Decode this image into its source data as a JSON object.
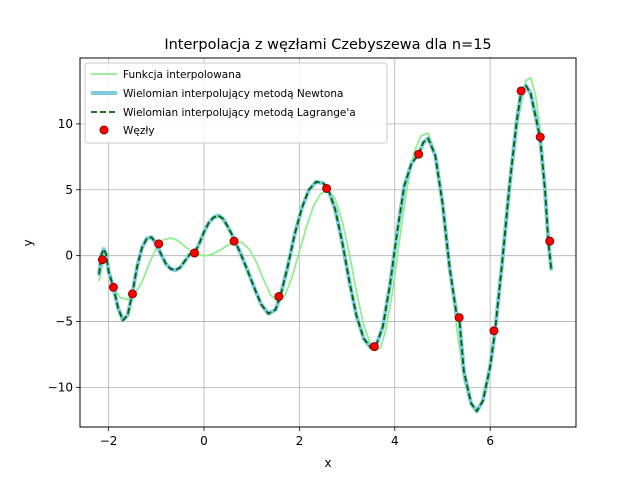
{
  "chart_data": {
    "type": "line",
    "title": "Interpolacja z węzłami Czebyszewa dla n=15",
    "xlabel": "x",
    "ylabel": "y",
    "xlim": [
      -2.6,
      7.8
    ],
    "ylim": [
      -13.0,
      15.0
    ],
    "xticks": [
      -2,
      0,
      2,
      4,
      6
    ],
    "yticks": [
      -10,
      -5,
      0,
      5,
      10
    ],
    "grid": true,
    "legend_position": "top-left",
    "series": [
      {
        "name": "Funkcja interpolowana",
        "color": "#90ee90",
        "style": "solid",
        "points": [
          [
            -2.2,
            -1.9
          ],
          [
            -2.15,
            -1.0
          ],
          [
            -2.08,
            -0.2
          ],
          [
            -2.0,
            -1.0
          ],
          [
            -1.9,
            -2.4
          ],
          [
            -1.75,
            -3.2
          ],
          [
            -1.6,
            -3.3
          ],
          [
            -1.45,
            -2.9
          ],
          [
            -1.3,
            -2.0
          ],
          [
            -1.15,
            -0.6
          ],
          [
            -1.0,
            0.6
          ],
          [
            -0.85,
            1.2
          ],
          [
            -0.7,
            1.35
          ],
          [
            -0.55,
            1.15
          ],
          [
            -0.4,
            0.7
          ],
          [
            -0.25,
            0.3
          ],
          [
            -0.1,
            0.05
          ],
          [
            0.05,
            0.0
          ],
          [
            0.2,
            0.15
          ],
          [
            0.35,
            0.45
          ],
          [
            0.5,
            0.8
          ],
          [
            0.65,
            1.05
          ],
          [
            0.8,
            1.0
          ],
          [
            0.95,
            0.5
          ],
          [
            1.1,
            -0.5
          ],
          [
            1.25,
            -1.8
          ],
          [
            1.4,
            -3.0
          ],
          [
            1.55,
            -3.5
          ],
          [
            1.7,
            -3.0
          ],
          [
            1.85,
            -1.6
          ],
          [
            2.0,
            0.3
          ],
          [
            2.15,
            2.2
          ],
          [
            2.3,
            3.8
          ],
          [
            2.45,
            4.7
          ],
          [
            2.6,
            5.0
          ],
          [
            2.75,
            4.3
          ],
          [
            2.9,
            2.6
          ],
          [
            3.05,
            0.1
          ],
          [
            3.2,
            -2.8
          ],
          [
            3.35,
            -5.3
          ],
          [
            3.5,
            -6.8
          ],
          [
            3.6,
            -7.2
          ],
          [
            3.7,
            -7.0
          ],
          [
            3.8,
            -5.8
          ],
          [
            3.95,
            -2.8
          ],
          [
            4.1,
            1.2
          ],
          [
            4.25,
            5.0
          ],
          [
            4.4,
            7.8
          ],
          [
            4.55,
            9.1
          ],
          [
            4.7,
            9.3
          ],
          [
            4.85,
            7.8
          ],
          [
            5.0,
            4.2
          ],
          [
            5.15,
            -0.8
          ],
          [
            5.3,
            -5.5
          ],
          [
            5.45,
            -9.4
          ],
          [
            5.6,
            -11.4
          ],
          [
            5.72,
            -11.8
          ],
          [
            5.85,
            -11.0
          ],
          [
            6.0,
            -8.6
          ],
          [
            6.15,
            -4.6
          ],
          [
            6.3,
            0.5
          ],
          [
            6.45,
            6.0
          ],
          [
            6.6,
            10.6
          ],
          [
            6.75,
            13.3
          ],
          [
            6.85,
            13.5
          ],
          [
            6.95,
            12.2
          ],
          [
            7.05,
            9.6
          ],
          [
            7.15,
            5.6
          ],
          [
            7.22,
            2.2
          ],
          [
            7.28,
            -0.9
          ]
        ]
      },
      {
        "name": "Wielomian interpolujący metodą Newtona",
        "color": "#7ecbe0",
        "style": "solid",
        "points": [
          [
            -2.2,
            -1.4
          ],
          [
            -2.15,
            0.1
          ],
          [
            -2.1,
            0.5
          ],
          [
            -2.05,
            0.1
          ],
          [
            -2.0,
            -1.2
          ],
          [
            -1.9,
            -2.4
          ],
          [
            -1.8,
            -4.0
          ],
          [
            -1.7,
            -4.9
          ],
          [
            -1.6,
            -4.5
          ],
          [
            -1.5,
            -2.8
          ],
          [
            -1.4,
            -0.8
          ],
          [
            -1.3,
            0.6
          ],
          [
            -1.2,
            1.3
          ],
          [
            -1.1,
            1.4
          ],
          [
            -1.0,
            0.9
          ],
          [
            -0.9,
            0.1
          ],
          [
            -0.8,
            -0.6
          ],
          [
            -0.7,
            -1.0
          ],
          [
            -0.6,
            -1.1
          ],
          [
            -0.5,
            -0.9
          ],
          [
            -0.4,
            -0.4
          ],
          [
            -0.3,
            0.1
          ],
          [
            -0.2,
            0.2
          ],
          [
            -0.1,
            0.9
          ],
          [
            0.0,
            1.8
          ],
          [
            0.1,
            2.5
          ],
          [
            0.2,
            2.9
          ],
          [
            0.3,
            3.05
          ],
          [
            0.4,
            2.8
          ],
          [
            0.5,
            2.2
          ],
          [
            0.6,
            1.5
          ],
          [
            0.65,
            1.1
          ],
          [
            0.75,
            0.3
          ],
          [
            0.9,
            -1.0
          ],
          [
            1.05,
            -2.4
          ],
          [
            1.2,
            -3.7
          ],
          [
            1.35,
            -4.4
          ],
          [
            1.5,
            -4.1
          ],
          [
            1.6,
            -3.1
          ],
          [
            1.75,
            -0.9
          ],
          [
            1.9,
            1.6
          ],
          [
            2.05,
            3.6
          ],
          [
            2.2,
            5.0
          ],
          [
            2.35,
            5.6
          ],
          [
            2.5,
            5.5
          ],
          [
            2.6,
            5.1
          ],
          [
            2.75,
            3.5
          ],
          [
            2.9,
            1.0
          ],
          [
            3.05,
            -2.0
          ],
          [
            3.2,
            -4.6
          ],
          [
            3.35,
            -6.3
          ],
          [
            3.5,
            -7.0
          ],
          [
            3.6,
            -6.9
          ],
          [
            3.75,
            -5.4
          ],
          [
            3.9,
            -2.2
          ],
          [
            4.05,
            1.8
          ],
          [
            4.2,
            5.3
          ],
          [
            4.35,
            7.0
          ],
          [
            4.5,
            7.7
          ],
          [
            4.6,
            8.6
          ],
          [
            4.7,
            8.9
          ],
          [
            4.85,
            7.6
          ],
          [
            5.0,
            4.0
          ],
          [
            5.15,
            -0.9
          ],
          [
            5.3,
            -4.6
          ],
          [
            5.35,
            -4.7
          ],
          [
            5.45,
            -8.8
          ],
          [
            5.6,
            -11.2
          ],
          [
            5.72,
            -11.8
          ],
          [
            5.85,
            -11.0
          ],
          [
            6.0,
            -8.4
          ],
          [
            6.1,
            -5.8
          ],
          [
            6.25,
            -0.6
          ],
          [
            6.4,
            5.1
          ],
          [
            6.55,
            10.0
          ],
          [
            6.65,
            12.5
          ],
          [
            6.75,
            12.9
          ],
          [
            6.85,
            12.3
          ],
          [
            6.95,
            10.6
          ],
          [
            7.05,
            8.9
          ],
          [
            7.15,
            5.0
          ],
          [
            7.22,
            1.1
          ],
          [
            7.28,
            -1.0
          ]
        ]
      },
      {
        "name": "Wielomian interpolujący metodą Lagrange'a",
        "color": "#006400",
        "style": "dashed",
        "points": [
          [
            -2.2,
            -1.4
          ],
          [
            -2.15,
            0.1
          ],
          [
            -2.1,
            0.5
          ],
          [
            -2.05,
            0.1
          ],
          [
            -2.0,
            -1.2
          ],
          [
            -1.9,
            -2.4
          ],
          [
            -1.8,
            -4.0
          ],
          [
            -1.7,
            -4.9
          ],
          [
            -1.6,
            -4.5
          ],
          [
            -1.5,
            -2.8
          ],
          [
            -1.4,
            -0.8
          ],
          [
            -1.3,
            0.6
          ],
          [
            -1.2,
            1.3
          ],
          [
            -1.1,
            1.4
          ],
          [
            -1.0,
            0.9
          ],
          [
            -0.9,
            0.1
          ],
          [
            -0.8,
            -0.6
          ],
          [
            -0.7,
            -1.0
          ],
          [
            -0.6,
            -1.1
          ],
          [
            -0.5,
            -0.9
          ],
          [
            -0.4,
            -0.4
          ],
          [
            -0.3,
            0.1
          ],
          [
            -0.2,
            0.2
          ],
          [
            -0.1,
            0.9
          ],
          [
            0.0,
            1.8
          ],
          [
            0.1,
            2.5
          ],
          [
            0.2,
            2.9
          ],
          [
            0.3,
            3.05
          ],
          [
            0.4,
            2.8
          ],
          [
            0.5,
            2.2
          ],
          [
            0.6,
            1.5
          ],
          [
            0.65,
            1.1
          ],
          [
            0.75,
            0.3
          ],
          [
            0.9,
            -1.0
          ],
          [
            1.05,
            -2.4
          ],
          [
            1.2,
            -3.7
          ],
          [
            1.35,
            -4.4
          ],
          [
            1.5,
            -4.1
          ],
          [
            1.6,
            -3.1
          ],
          [
            1.75,
            -0.9
          ],
          [
            1.9,
            1.6
          ],
          [
            2.05,
            3.6
          ],
          [
            2.2,
            5.0
          ],
          [
            2.35,
            5.6
          ],
          [
            2.5,
            5.5
          ],
          [
            2.6,
            5.1
          ],
          [
            2.75,
            3.5
          ],
          [
            2.9,
            1.0
          ],
          [
            3.05,
            -2.0
          ],
          [
            3.2,
            -4.6
          ],
          [
            3.35,
            -6.3
          ],
          [
            3.5,
            -7.0
          ],
          [
            3.6,
            -6.9
          ],
          [
            3.75,
            -5.4
          ],
          [
            3.9,
            -2.2
          ],
          [
            4.05,
            1.8
          ],
          [
            4.2,
            5.3
          ],
          [
            4.35,
            7.0
          ],
          [
            4.5,
            7.7
          ],
          [
            4.6,
            8.6
          ],
          [
            4.7,
            8.9
          ],
          [
            4.85,
            7.6
          ],
          [
            5.0,
            4.0
          ],
          [
            5.15,
            -0.9
          ],
          [
            5.3,
            -4.6
          ],
          [
            5.35,
            -4.7
          ],
          [
            5.45,
            -8.8
          ],
          [
            5.6,
            -11.2
          ],
          [
            5.72,
            -11.8
          ],
          [
            5.85,
            -11.0
          ],
          [
            6.0,
            -8.4
          ],
          [
            6.1,
            -5.8
          ],
          [
            6.25,
            -0.6
          ],
          [
            6.4,
            5.1
          ],
          [
            6.55,
            10.0
          ],
          [
            6.65,
            12.5
          ],
          [
            6.75,
            12.9
          ],
          [
            6.85,
            12.3
          ],
          [
            6.95,
            10.6
          ],
          [
            7.05,
            8.9
          ],
          [
            7.15,
            5.0
          ],
          [
            7.22,
            1.1
          ],
          [
            7.28,
            -1.0
          ]
        ]
      }
    ],
    "nodes": {
      "name": "Węzły",
      "color": "#ff0000",
      "edge_color": "#8b0000",
      "x": [
        -2.13,
        -1.9,
        -1.5,
        -0.95,
        -0.2,
        0.63,
        1.57,
        2.57,
        3.57,
        4.5,
        5.35,
        6.08,
        6.65,
        7.05,
        7.25
      ],
      "y": [
        -0.3,
        -2.4,
        -2.9,
        0.9,
        0.2,
        1.1,
        -3.1,
        5.1,
        -6.9,
        7.7,
        -4.7,
        -5.7,
        12.5,
        9.0,
        1.1
      ]
    }
  }
}
